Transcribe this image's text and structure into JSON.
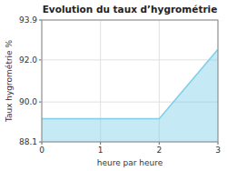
{
  "chart_data": {
    "type": "area",
    "title": "Evolution du taux d’hygrométrie",
    "x_label": "heure par heure",
    "y_label": "Taux hygrométrie %",
    "x": [
      0,
      2,
      3
    ],
    "values": [
      89.2,
      89.2,
      92.5
    ],
    "xlim": [
      0,
      3
    ],
    "ylim": [
      88.1,
      93.9
    ],
    "xticks": [
      0,
      1,
      2,
      3
    ],
    "yticks": [
      88.1,
      {
        "value": 90,
        "label": "90.0"
      },
      {
        "value": 92,
        "label": "92.0"
      },
      93.9
    ],
    "color": "#7ecfe8",
    "grid": true
  }
}
